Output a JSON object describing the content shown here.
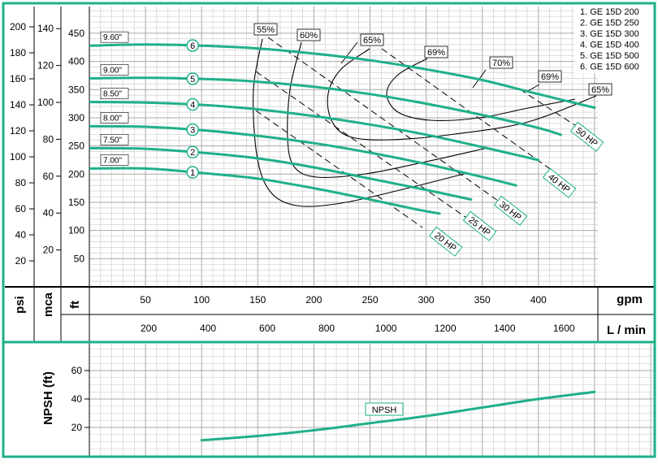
{
  "colors": {
    "frame": "#1fb08a",
    "curve": "#1fb08a",
    "grid": "#c8c8c8",
    "grid_major": "#a8a8a8",
    "dash": "#000000",
    "text": "#000000",
    "band_bg": "#ffffff"
  },
  "chart_data": {
    "type": "line",
    "x_units": {
      "gpm": "gpm",
      "lmin": "L / min"
    },
    "y_units": {
      "psi": "psi",
      "mca": "mca",
      "ft": "ft"
    },
    "x_gpm_ticks": [
      50,
      100,
      150,
      200,
      250,
      300,
      350,
      400
    ],
    "x_lmin_ticks": [
      200,
      400,
      600,
      800,
      1000,
      1200,
      1400,
      1600
    ],
    "psi_ticks": [
      20,
      40,
      60,
      80,
      100,
      120,
      140,
      160,
      180,
      200
    ],
    "mca_ticks": [
      20,
      40,
      60,
      80,
      100,
      120,
      140
    ],
    "ft_ticks": [
      50,
      100,
      150,
      200,
      250,
      300,
      350,
      400,
      450
    ],
    "xlim_gpm": [
      0,
      460
    ],
    "ylim_ft": [
      0,
      485
    ],
    "legend": [
      "1. GE 15D 200",
      "2. GE 15D 250",
      "3. GE 15D 300",
      "4. GE 15D 400",
      "5. GE 15D 500",
      "6. GE 15D 600"
    ],
    "series": [
      {
        "name": "1",
        "impeller": "7.00\"",
        "x": [
          0,
          50,
          100,
          150,
          200,
          250,
          290,
          312
        ],
        "y": [
          210,
          210,
          202,
          192,
          175,
          155,
          138,
          130
        ]
      },
      {
        "name": "2",
        "impeller": "7.50\"",
        "x": [
          0,
          50,
          100,
          150,
          200,
          250,
          300,
          340
        ],
        "y": [
          246,
          245,
          238,
          228,
          212,
          192,
          172,
          155
        ]
      },
      {
        "name": "3",
        "impeller": "8.00\"",
        "x": [
          0,
          50,
          100,
          150,
          200,
          250,
          300,
          350,
          380
        ],
        "y": [
          285,
          284,
          278,
          268,
          255,
          238,
          218,
          195,
          180
        ]
      },
      {
        "name": "4",
        "impeller": "8.50\"",
        "x": [
          0,
          50,
          100,
          150,
          200,
          250,
          300,
          350,
          400
        ],
        "y": [
          328,
          327,
          323,
          315,
          303,
          288,
          270,
          248,
          225
        ]
      },
      {
        "name": "5",
        "impeller": "9.00\"",
        "x": [
          0,
          50,
          100,
          150,
          200,
          250,
          300,
          350,
          400,
          420
        ],
        "y": [
          370,
          371,
          369,
          364,
          355,
          342,
          325,
          305,
          282,
          270
        ]
      },
      {
        "name": "6",
        "impeller": "9.60\"",
        "x": [
          0,
          50,
          100,
          150,
          200,
          250,
          300,
          350,
          400,
          450
        ],
        "y": [
          428,
          430,
          428,
          423,
          414,
          402,
          386,
          367,
          342,
          318
        ]
      }
    ],
    "efficiency_labels": [
      "55%",
      "60%",
      "65%",
      "69%",
      "70%",
      "69%",
      "65%"
    ],
    "power_labels": [
      "20 HP",
      "25 HP",
      "30 HP",
      "40 HP",
      "50 HP"
    ],
    "npsh": {
      "ylabel": "NPSH (ft)",
      "label": "NPSH",
      "ticks": [
        20,
        40,
        60
      ],
      "ylim": [
        0,
        80
      ],
      "x": [
        100,
        150,
        200,
        250,
        300,
        350,
        400,
        450
      ],
      "y": [
        11,
        14,
        18,
        23,
        28,
        34,
        40,
        45
      ]
    }
  }
}
